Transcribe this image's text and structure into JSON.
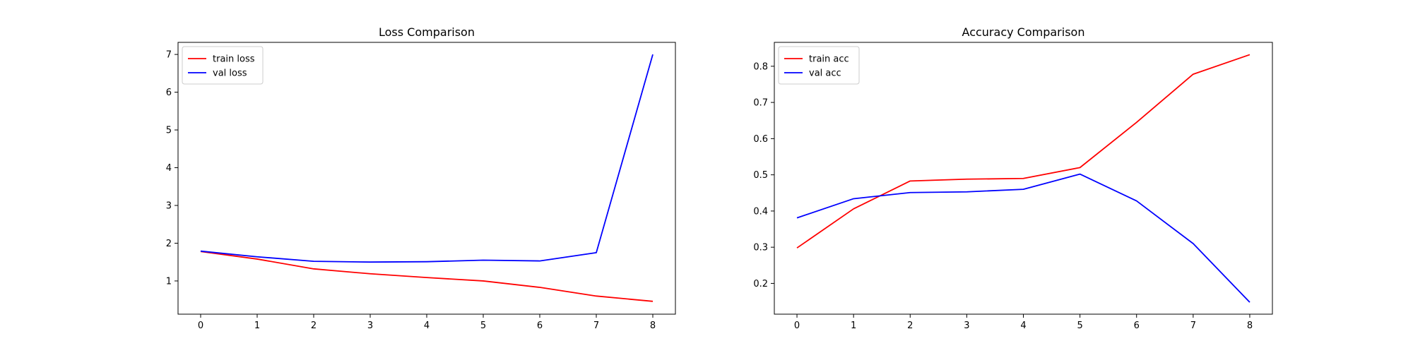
{
  "figure": {
    "background": "#ffffff"
  },
  "chart_data": [
    {
      "type": "line",
      "title": "Loss Comparison",
      "xlabel": "",
      "ylabel": "",
      "x": [
        0,
        1,
        2,
        3,
        4,
        5,
        6,
        7,
        8
      ],
      "xticks": [
        0,
        1,
        2,
        3,
        4,
        5,
        6,
        7,
        8
      ],
      "yticks": [
        1,
        2,
        3,
        4,
        5,
        6,
        7
      ],
      "xlim": [
        -0.4,
        8.4
      ],
      "ylim": [
        0.12,
        7.32
      ],
      "grid": false,
      "legend_position": "top-left",
      "series": [
        {
          "name": "train loss",
          "color": "#ff0000",
          "values": [
            1.78,
            1.58,
            1.32,
            1.19,
            1.09,
            1.0,
            0.83,
            0.6,
            0.46
          ]
        },
        {
          "name": "val loss",
          "color": "#0000ff",
          "values": [
            1.79,
            1.64,
            1.52,
            1.5,
            1.51,
            1.55,
            1.53,
            1.75,
            7.0
          ]
        }
      ]
    },
    {
      "type": "line",
      "title": "Accuracy Comparison",
      "xlabel": "",
      "ylabel": "",
      "x": [
        0,
        1,
        2,
        3,
        4,
        5,
        6,
        7,
        8
      ],
      "xticks": [
        0,
        1,
        2,
        3,
        4,
        5,
        6,
        7,
        8
      ],
      "yticks": [
        0.2,
        0.3,
        0.4,
        0.5,
        0.6,
        0.7,
        0.8
      ],
      "xlim": [
        -0.4,
        8.4
      ],
      "ylim": [
        0.115,
        0.866
      ],
      "grid": false,
      "legend_position": "top-left",
      "series": [
        {
          "name": "train acc",
          "color": "#ff0000",
          "values": [
            0.298,
            0.406,
            0.483,
            0.488,
            0.49,
            0.52,
            0.645,
            0.778,
            0.832
          ]
        },
        {
          "name": "val acc",
          "color": "#0000ff",
          "values": [
            0.381,
            0.434,
            0.451,
            0.453,
            0.46,
            0.502,
            0.428,
            0.31,
            0.148
          ]
        }
      ]
    }
  ]
}
